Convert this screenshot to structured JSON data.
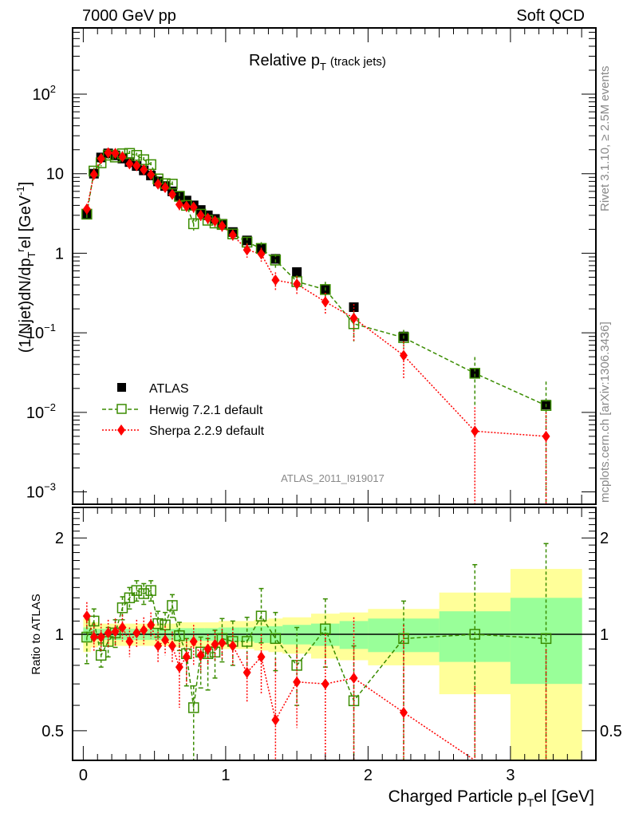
{
  "header": {
    "left": "7000 GeV pp",
    "right": "Soft QCD"
  },
  "side_labels": {
    "rivet": "Rivet 3.1.10, ≥ 2.5M events",
    "mcplots": "mcplots.cern.ch [arXiv:1306.3436]"
  },
  "chart_data": [
    {
      "type": "scatter",
      "panel": "main",
      "title": "Relative p_T (track jets)",
      "title_main": "Relative p",
      "title_sub": "T",
      "title_suffix": "(track jets)",
      "ylabel": "(1/Njet)dN/dp_T^rel [GeV^-1]",
      "xlabel": "Charged Particle p_T^rel [GeV]",
      "yscale": "log",
      "xlim": [
        -0.075,
        3.6
      ],
      "ylim": [
        0.0007,
        680
      ],
      "x_ticks": [
        "0",
        "1",
        "2",
        "3"
      ],
      "y_ticks": [
        {
          "base": "10",
          "exp": "2",
          "value": 100
        },
        {
          "base": "10",
          "exp": "",
          "value": 10
        },
        {
          "base": "1",
          "exp": "",
          "value": 1
        },
        {
          "base": "10",
          "exp": "−1",
          "value": 0.1
        },
        {
          "base": "10",
          "exp": "−2",
          "value": 0.01
        },
        {
          "base": "10",
          "exp": "−3",
          "value": 0.001
        }
      ],
      "watermark": "ATLAS_2011_I919017",
      "legend_position": "bottom-left",
      "legend": [
        {
          "name": "ATLAS",
          "style": "black-square"
        },
        {
          "name": "Herwig 7.2.1 default",
          "style": "green-open-square-dashed"
        },
        {
          "name": "Sherpa 2.2.9 default",
          "style": "red-diamond-dotted"
        }
      ],
      "series": [
        {
          "name": "ATLAS",
          "color": "#000000",
          "x": [
            0.025,
            0.075,
            0.125,
            0.175,
            0.225,
            0.275,
            0.325,
            0.375,
            0.425,
            0.475,
            0.525,
            0.575,
            0.625,
            0.675,
            0.725,
            0.775,
            0.825,
            0.875,
            0.925,
            0.975,
            1.05,
            1.15,
            1.25,
            1.35,
            1.5,
            1.7,
            1.9,
            2.25,
            2.75,
            3.25
          ],
          "y": [
            3.1,
            10.0,
            16.0,
            18.0,
            17.0,
            15.5,
            14.0,
            12.5,
            11.0,
            9.5,
            8.0,
            7.0,
            6.0,
            5.2,
            4.6,
            4.0,
            3.5,
            3.0,
            2.7,
            2.35,
            1.85,
            1.45,
            1.15,
            0.85,
            0.58,
            0.35,
            0.21,
            0.09,
            0.031,
            0.0125
          ]
        },
        {
          "name": "Herwig 7.2.1 default",
          "color": "#3a8c00",
          "x": [
            0.025,
            0.075,
            0.125,
            0.175,
            0.225,
            0.275,
            0.325,
            0.375,
            0.425,
            0.475,
            0.525,
            0.575,
            0.625,
            0.675,
            0.725,
            0.775,
            0.825,
            0.875,
            0.925,
            0.975,
            1.05,
            1.15,
            1.25,
            1.35,
            1.5,
            1.7,
            1.9,
            2.25,
            2.75,
            3.25
          ],
          "y": [
            3.1,
            10.8,
            13.7,
            17.1,
            16.2,
            17.8,
            18.0,
            17.0,
            15.0,
            13.0,
            8.6,
            7.5,
            7.4,
            5.2,
            4.0,
            2.35,
            3.1,
            2.6,
            2.4,
            2.3,
            1.75,
            1.38,
            1.15,
            0.82,
            0.44,
            0.35,
            0.13,
            0.087,
            0.031,
            0.0122
          ],
          "yerr_rel": [
            0.16,
            0.1,
            0.1,
            0.1,
            0.08,
            0.08,
            0.08,
            0.08,
            0.08,
            0.08,
            0.08,
            0.08,
            0.08,
            0.1,
            0.12,
            0.18,
            0.15,
            0.15,
            0.15,
            0.15,
            0.15,
            0.15,
            0.2,
            0.2,
            0.2,
            0.25,
            0.4,
            0.25,
            0.6,
            1.0
          ]
        },
        {
          "name": "Sherpa 2.2.9 default",
          "color": "#ff0000",
          "x": [
            0.025,
            0.075,
            0.125,
            0.175,
            0.225,
            0.275,
            0.325,
            0.375,
            0.425,
            0.475,
            0.525,
            0.575,
            0.625,
            0.675,
            0.725,
            0.775,
            0.825,
            0.875,
            0.925,
            0.975,
            1.05,
            1.15,
            1.25,
            1.35,
            1.5,
            1.7,
            1.9,
            2.25,
            2.75,
            3.25
          ],
          "y": [
            3.6,
            9.8,
            15.5,
            18.3,
            18.0,
            16.3,
            13.3,
            12.6,
            11.2,
            9.7,
            7.4,
            6.7,
            5.5,
            4.1,
            3.9,
            3.8,
            3.0,
            2.75,
            2.55,
            2.2,
            1.7,
            1.1,
            0.98,
            0.46,
            0.41,
            0.245,
            0.153,
            0.052,
            0.0058,
            0.005
          ],
          "yerr_rel": [
            0.15,
            0.1,
            0.1,
            0.08,
            0.08,
            0.08,
            0.08,
            0.08,
            0.08,
            0.08,
            0.1,
            0.1,
            0.1,
            0.15,
            0.15,
            0.15,
            0.15,
            0.15,
            0.15,
            0.15,
            0.15,
            0.2,
            0.2,
            0.25,
            0.25,
            0.3,
            0.5,
            0.5,
            1.0,
            1.0
          ]
        }
      ]
    },
    {
      "type": "scatter",
      "panel": "ratio",
      "ylabel": "Ratio to ATLAS",
      "xlabel_main": "Charged Particle p",
      "xlabel_sub": "T",
      "xlabel_suffix": "el [GeV]",
      "xlabel_sup": "r",
      "yscale": "log",
      "xlim": [
        -0.075,
        3.6
      ],
      "ylim": [
        0.404,
        2.49
      ],
      "x_ticks": [
        "0",
        "1",
        "2",
        "3"
      ],
      "y_ticks": [
        {
          "label": "2",
          "value": 2
        },
        {
          "label": "1",
          "value": 1
        },
        {
          "label": "0.5",
          "value": 0.5
        }
      ],
      "reference_line": 1,
      "bands": {
        "bin_edges": [
          0.0,
          0.05,
          0.1,
          0.15,
          0.2,
          0.25,
          0.3,
          0.35,
          0.4,
          0.45,
          0.5,
          0.55,
          0.6,
          0.65,
          0.7,
          0.75,
          0.8,
          0.85,
          0.9,
          0.95,
          1.0,
          1.1,
          1.2,
          1.3,
          1.4,
          1.6,
          1.8,
          2.0,
          2.5,
          3.0,
          3.5
        ],
        "stat_rel": [
          0.05,
          0.04,
          0.04,
          0.04,
          0.04,
          0.04,
          0.04,
          0.04,
          0.04,
          0.04,
          0.04,
          0.04,
          0.04,
          0.045,
          0.045,
          0.045,
          0.045,
          0.045,
          0.045,
          0.05,
          0.05,
          0.05,
          0.06,
          0.06,
          0.07,
          0.08,
          0.1,
          0.12,
          0.18,
          0.3
        ],
        "total_rel": [
          0.12,
          0.09,
          0.08,
          0.08,
          0.08,
          0.08,
          0.08,
          0.08,
          0.08,
          0.08,
          0.08,
          0.08,
          0.08,
          0.09,
          0.09,
          0.09,
          0.09,
          0.09,
          0.09,
          0.1,
          0.1,
          0.1,
          0.11,
          0.12,
          0.13,
          0.16,
          0.17,
          0.2,
          0.35,
          0.6
        ],
        "stat_color": "#99ff99",
        "total_color": "#ffff99"
      },
      "series": [
        {
          "name": "Herwig 7.2.1 default",
          "color": "#3a8c00",
          "x": [
            0.025,
            0.075,
            0.125,
            0.175,
            0.225,
            0.275,
            0.325,
            0.375,
            0.425,
            0.475,
            0.525,
            0.575,
            0.625,
            0.675,
            0.725,
            0.775,
            0.825,
            0.875,
            0.925,
            0.975,
            1.05,
            1.15,
            1.25,
            1.35,
            1.5,
            1.7,
            1.9,
            2.25,
            2.75,
            3.25
          ],
          "y": [
            0.98,
            1.1,
            0.86,
            0.95,
            1.01,
            1.21,
            1.3,
            1.37,
            1.34,
            1.37,
            1.08,
            1.07,
            1.23,
            0.99,
            0.87,
            0.59,
            0.88,
            0.87,
            0.88,
            0.97,
            0.95,
            0.95,
            1.14,
            0.97,
            0.8,
            1.04,
            0.62,
            0.97,
            1.0,
            0.97
          ],
          "yerr_lo": [
            0.17,
            0.1,
            0.07,
            0.1,
            0.1,
            0.1,
            0.1,
            0.1,
            0.1,
            0.1,
            0.1,
            0.1,
            0.1,
            0.1,
            0.18,
            0.2,
            0.2,
            0.2,
            0.15,
            0.15,
            0.15,
            0.2,
            0.2,
            0.2,
            0.2,
            0.25,
            0.3,
            0.6,
            0.6,
            0.6
          ],
          "yerr_hi": [
            0.17,
            0.1,
            0.08,
            0.1,
            0.1,
            0.1,
            0.1,
            0.1,
            0.1,
            0.1,
            0.1,
            0.1,
            0.1,
            0.1,
            0.1,
            0.1,
            0.1,
            0.1,
            0.15,
            0.15,
            0.15,
            0.18,
            0.25,
            0.2,
            0.25,
            0.25,
            0.3,
            0.3,
            0.65,
            0.95
          ]
        },
        {
          "name": "Sherpa 2.2.9 default",
          "color": "#ff0000",
          "x": [
            0.025,
            0.075,
            0.125,
            0.175,
            0.225,
            0.275,
            0.325,
            0.375,
            0.425,
            0.475,
            0.525,
            0.575,
            0.625,
            0.675,
            0.725,
            0.775,
            0.825,
            0.875,
            0.925,
            0.975,
            1.05,
            1.15,
            1.25,
            1.35,
            1.5,
            1.7,
            1.9,
            2.25,
            2.75,
            3.25
          ],
          "y": [
            1.14,
            0.98,
            0.98,
            1.01,
            1.02,
            1.05,
            0.95,
            1.01,
            1.03,
            1.07,
            0.92,
            0.96,
            0.92,
            0.79,
            0.85,
            0.95,
            0.86,
            0.9,
            0.93,
            0.94,
            0.92,
            0.76,
            0.85,
            0.54,
            0.71,
            0.7,
            0.73,
            0.57,
            0.19,
            0.4
          ],
          "yerr_lo": [
            0.1,
            0.1,
            0.1,
            0.1,
            0.1,
            0.1,
            0.1,
            0.1,
            0.1,
            0.1,
            0.1,
            0.1,
            0.1,
            0.2,
            0.15,
            0.15,
            0.1,
            0.1,
            0.1,
            0.1,
            0.12,
            0.15,
            0.2,
            0.3,
            0.2,
            0.3,
            0.4,
            0.5,
            0.5,
            0.5
          ],
          "yerr_hi": [
            0.12,
            0.1,
            0.1,
            0.1,
            0.1,
            0.1,
            0.1,
            0.1,
            0.1,
            0.1,
            0.1,
            0.1,
            0.1,
            0.15,
            0.12,
            0.12,
            0.1,
            0.1,
            0.1,
            0.1,
            0.12,
            0.12,
            0.15,
            0.3,
            0.2,
            0.3,
            0.4,
            0.5,
            0.5,
            0.5
          ]
        }
      ]
    }
  ]
}
